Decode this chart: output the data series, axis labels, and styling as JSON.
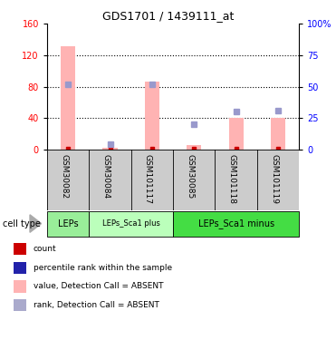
{
  "title": "GDS1701 / 1439111_at",
  "samples": [
    "GSM30082",
    "GSM30084",
    "GSM101117",
    "GSM30085",
    "GSM101118",
    "GSM101119"
  ],
  "bar_values": [
    132,
    2,
    87,
    6,
    40,
    40
  ],
  "bar_color": "#ffb3b3",
  "rank_values": [
    52,
    4,
    52,
    20,
    30,
    31
  ],
  "rank_color": "#9999cc",
  "count_color": "#cc0000",
  "ylim_left": [
    0,
    160
  ],
  "ylim_right": [
    0,
    100
  ],
  "yticks_left": [
    0,
    40,
    80,
    120,
    160
  ],
  "yticks_right": [
    0,
    25,
    50,
    75,
    100
  ],
  "ytick_labels_right": [
    "0",
    "25",
    "50",
    "75",
    "100%"
  ],
  "group_configs": [
    {
      "label": "LEPs",
      "start": 0,
      "end": 0,
      "color": "#99ee99",
      "fontsize": 7,
      "bold": false
    },
    {
      "label": "LEPs_Sca1 plus",
      "start": 1,
      "end": 2,
      "color": "#bbffbb",
      "fontsize": 6,
      "bold": false
    },
    {
      "label": "LEPs_Sca1 minus",
      "start": 3,
      "end": 5,
      "color": "#44dd44",
      "fontsize": 7,
      "bold": false
    }
  ],
  "cell_type_label": "cell type",
  "legend_items": [
    {
      "label": "count",
      "color": "#cc0000"
    },
    {
      "label": "percentile rank within the sample",
      "color": "#2222aa"
    },
    {
      "label": "value, Detection Call = ABSENT",
      "color": "#ffb3b3"
    },
    {
      "label": "rank, Detection Call = ABSENT",
      "color": "#aaaacc"
    }
  ],
  "xlabel_bg": "#cccccc",
  "plot_bg": "#ffffff",
  "bar_width": 0.35,
  "grid_color": "#000000",
  "grid_linestyle": ":",
  "grid_linewidth": 0.8
}
